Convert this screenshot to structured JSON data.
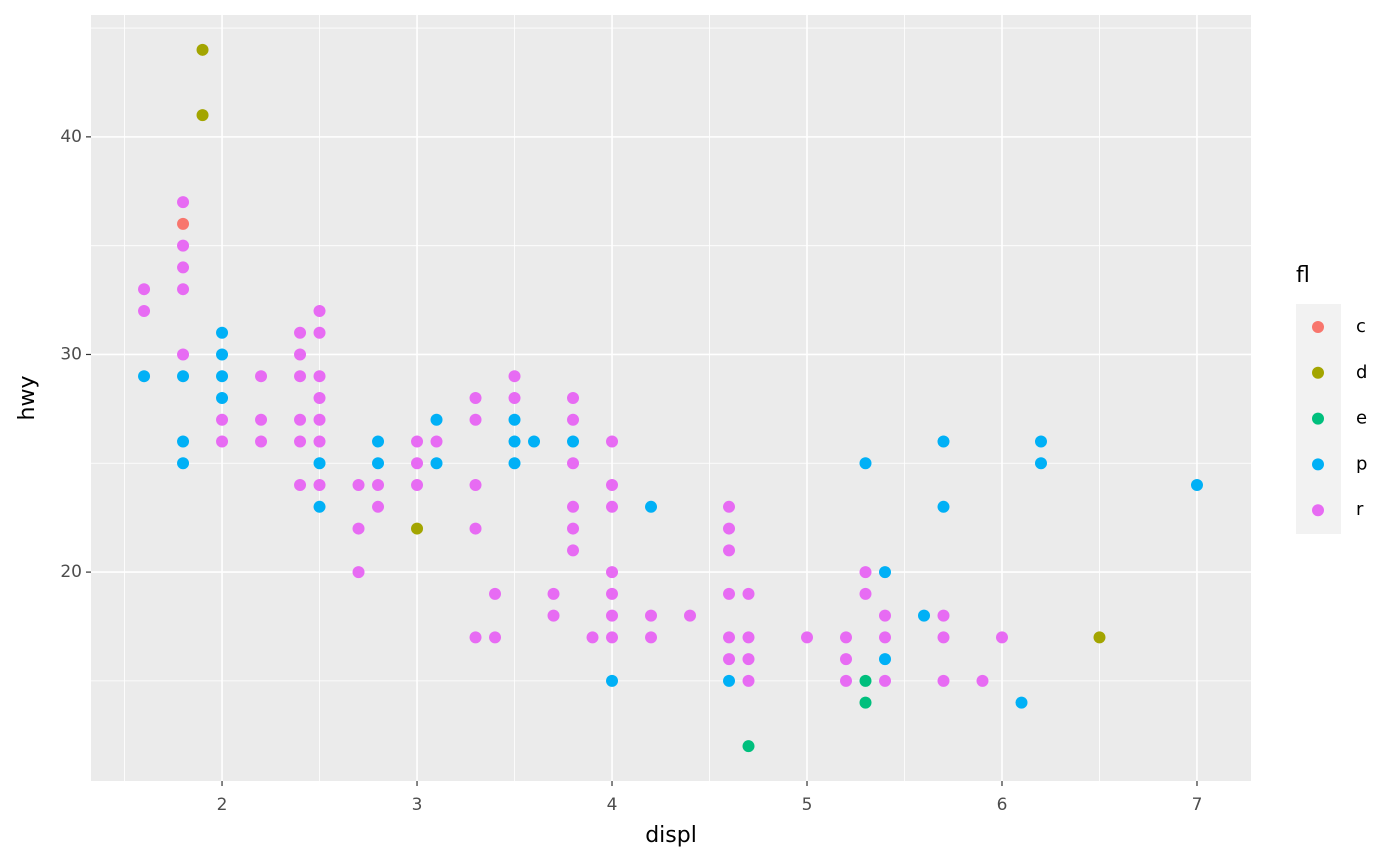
{
  "chart_data": {
    "type": "scatter",
    "x_label": "displ",
    "y_label": "hwy",
    "legend_title": "fl",
    "xlim": [
      1.328,
      7.277
    ],
    "ylim": [
      10.4,
      45.6
    ],
    "xticks": [
      2,
      3,
      4,
      5,
      6,
      7
    ],
    "yticks": [
      20,
      30,
      40
    ],
    "grid": true,
    "legend_position": "right",
    "series": [
      {
        "name": "c",
        "color": "#F8766D",
        "x": [
          1.8
        ],
        "y": [
          36
        ]
      },
      {
        "name": "d",
        "color": "#A3A500",
        "x": [
          1.9,
          1.9,
          3.0,
          6.5
        ],
        "y": [
          44,
          41,
          22,
          17
        ]
      },
      {
        "name": "e",
        "color": "#00BF7D",
        "x": [
          4.7,
          5.3,
          5.3
        ],
        "y": [
          12,
          15,
          14
        ]
      },
      {
        "name": "p",
        "color": "#00B0F6",
        "x": [
          1.6,
          1.8,
          1.8,
          1.8,
          2.0,
          2.0,
          2.0,
          2.0,
          2.5,
          2.5,
          2.8,
          2.8,
          3.1,
          3.1,
          3.5,
          3.5,
          3.5,
          3.6,
          3.8,
          4.0,
          4.2,
          4.6,
          5.3,
          5.4,
          5.4,
          5.6,
          5.7,
          5.7,
          6.1,
          6.2,
          6.2,
          7.0
        ],
        "y": [
          29,
          29,
          26,
          25,
          31,
          30,
          29,
          28,
          25,
          23,
          26,
          25,
          27,
          25,
          27,
          26,
          25,
          26,
          26,
          15,
          23,
          15,
          25,
          20,
          16,
          18,
          26,
          23,
          14,
          26,
          25,
          24
        ]
      },
      {
        "name": "r",
        "color": "#E76BF3",
        "x": [
          1.6,
          1.6,
          1.8,
          1.8,
          1.8,
          1.8,
          1.8,
          2.0,
          2.0,
          2.2,
          2.2,
          2.2,
          2.4,
          2.4,
          2.4,
          2.4,
          2.4,
          2.4,
          2.5,
          2.5,
          2.5,
          2.5,
          2.5,
          2.5,
          2.5,
          2.7,
          2.7,
          2.7,
          2.8,
          2.8,
          3.0,
          3.0,
          3.0,
          3.1,
          3.3,
          3.3,
          3.3,
          3.3,
          3.3,
          3.4,
          3.4,
          3.5,
          3.5,
          3.7,
          3.7,
          3.8,
          3.8,
          3.8,
          3.8,
          3.8,
          3.8,
          3.9,
          4.0,
          4.0,
          4.0,
          4.0,
          4.0,
          4.0,
          4.0,
          4.2,
          4.2,
          4.4,
          4.6,
          4.6,
          4.6,
          4.6,
          4.6,
          4.6,
          4.7,
          4.7,
          4.7,
          4.7,
          5.0,
          5.2,
          5.2,
          5.2,
          5.3,
          5.3,
          5.4,
          5.4,
          5.4,
          5.7,
          5.7,
          5.7,
          5.9,
          6.0
        ],
        "y": [
          33,
          32,
          37,
          35,
          34,
          33,
          30,
          27,
          26,
          29,
          27,
          26,
          31,
          30,
          29,
          27,
          26,
          24,
          32,
          31,
          29,
          28,
          27,
          26,
          24,
          24,
          22,
          20,
          24,
          23,
          26,
          25,
          24,
          26,
          28,
          27,
          24,
          22,
          17,
          19,
          17,
          29,
          28,
          19,
          18,
          28,
          27,
          25,
          23,
          22,
          21,
          17,
          26,
          24,
          23,
          20,
          19,
          18,
          17,
          18,
          17,
          18,
          23,
          22,
          21,
          19,
          17,
          16,
          19,
          17,
          16,
          15,
          17,
          17,
          16,
          15,
          20,
          19,
          18,
          17,
          15,
          18,
          17,
          15,
          15,
          17
        ]
      }
    ]
  }
}
